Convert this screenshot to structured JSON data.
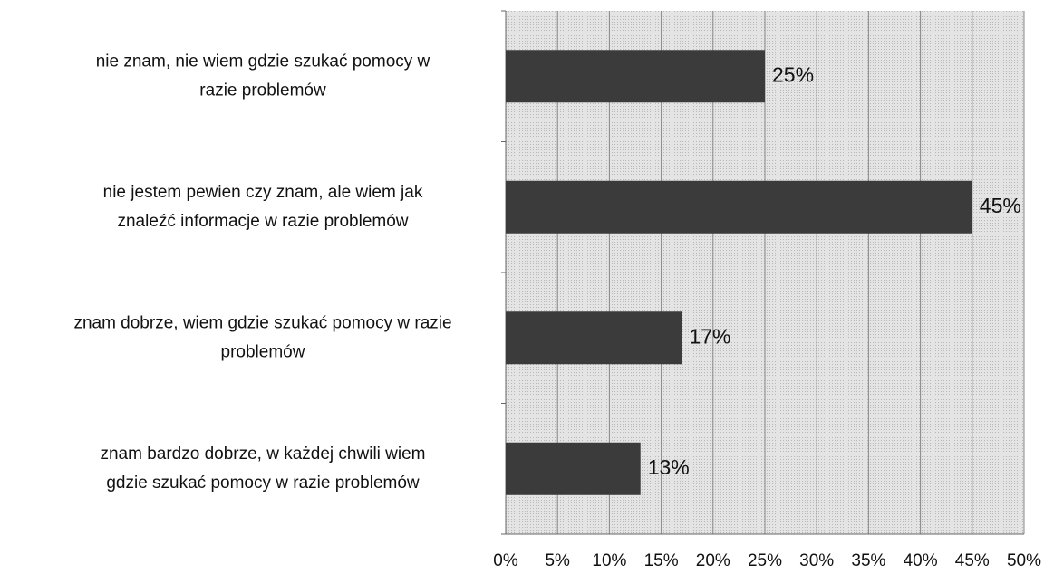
{
  "chart_data": {
    "type": "bar",
    "orientation": "horizontal",
    "categories": [
      [
        "nie znam, nie wiem gdzie szukać pomocy w",
        "razie problemów"
      ],
      [
        "nie jestem pewien czy znam, ale wiem jak",
        "znaleźć informacje w razie problemów"
      ],
      [
        "znam dobrze, wiem gdzie szukać pomocy w razie",
        "problemów"
      ],
      [
        "znam bardzo dobrze, w każdej chwili wiem",
        "gdzie szukać pomocy w razie problemów"
      ]
    ],
    "values": [
      25,
      45,
      17,
      13
    ],
    "value_labels": [
      "25%",
      "45%",
      "17%",
      "13%"
    ],
    "color": "#3b3b3b",
    "xlim": [
      0,
      50
    ],
    "xticks": [
      {
        "value": 0,
        "label": "0%"
      },
      {
        "value": 5,
        "label": "5%"
      },
      {
        "value": 10,
        "label": "10%"
      },
      {
        "value": 15,
        "label": "15%"
      },
      {
        "value": 20,
        "label": "20%"
      },
      {
        "value": 25,
        "label": "25%"
      },
      {
        "value": 30,
        "label": "30%"
      },
      {
        "value": 35,
        "label": "35%"
      },
      {
        "value": 40,
        "label": "40%"
      },
      {
        "value": 45,
        "label": "45%"
      },
      {
        "value": 50,
        "label": "50%"
      }
    ],
    "grid": true
  }
}
